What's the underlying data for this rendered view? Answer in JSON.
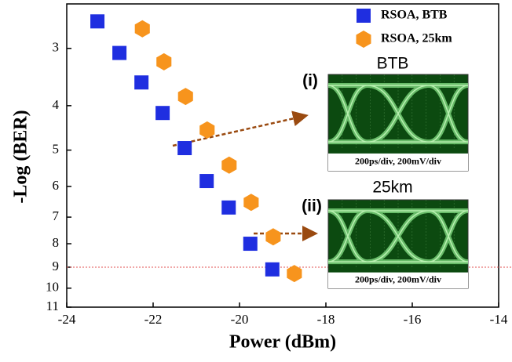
{
  "chart_data": {
    "type": "scatter",
    "x_label": "Power (dBm)",
    "y_label": "-Log (BER)",
    "xlim": [
      -24,
      -14
    ],
    "xticks": [
      -24,
      -22,
      -20,
      -18,
      -16,
      -14
    ],
    "ylim": [
      2.4,
      11
    ],
    "yticks": [
      3,
      4,
      5,
      6,
      7,
      8,
      9,
      10,
      11
    ],
    "y_log_scale": true,
    "y_inverted": true,
    "legend": "upper right",
    "reference_line": {
      "value": 9,
      "color": "#e05050"
    },
    "series": [
      {
        "name": "RSOA, BTB",
        "color": "#1f2ee0",
        "marker": "square",
        "x": [
          -23.29,
          -22.78,
          -22.27,
          -21.78,
          -21.27,
          -20.76,
          -20.25,
          -19.75,
          -19.24
        ],
        "values": [
          2.62,
          3.07,
          3.56,
          4.15,
          4.95,
          5.84,
          6.67,
          8.0,
          9.1
        ]
      },
      {
        "name": "RSOA, 25km",
        "color": "#f7941d",
        "marker": "hexagon",
        "x": [
          -22.25,
          -21.75,
          -21.25,
          -20.75,
          -20.24,
          -19.73,
          -19.22,
          -18.73
        ],
        "values": [
          2.72,
          3.21,
          3.82,
          4.52,
          5.39,
          6.5,
          7.73,
          9.29
        ]
      }
    ],
    "insets": [
      {
        "index": "(i)",
        "title": "BTB",
        "caption": "200ps/div, 200mV/div"
      },
      {
        "index": "(ii)",
        "title": "25km",
        "caption": "200ps/div, 200mV/div"
      }
    ]
  }
}
